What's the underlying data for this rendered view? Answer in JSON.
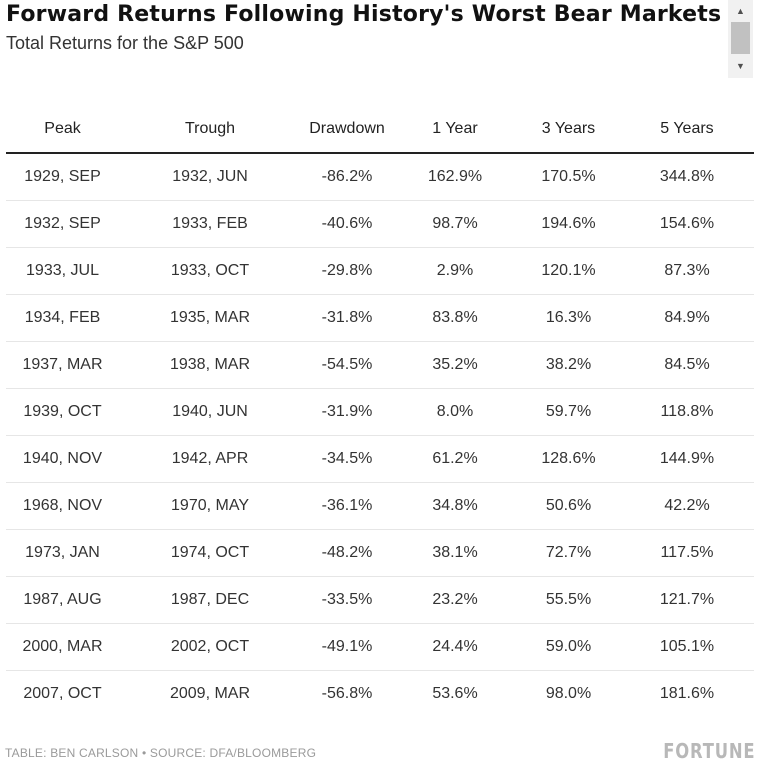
{
  "header": {
    "title": "Forward Returns Following History's Worst Bear Markets",
    "subtitle": "Total Returns for the S&P 500"
  },
  "scrollbar": {
    "up_icon": "▲",
    "down_icon": "▼"
  },
  "table": {
    "columns": [
      "Peak",
      "Trough",
      "Drawdown",
      "1 Year",
      "3 Years",
      "5 Years"
    ],
    "rows": [
      [
        "1929, SEP",
        "1932, JUN",
        "-86.2%",
        "162.9%",
        "170.5%",
        "344.8%"
      ],
      [
        "1932, SEP",
        "1933, FEB",
        "-40.6%",
        "98.7%",
        "194.6%",
        "154.6%"
      ],
      [
        "1933, JUL",
        "1933, OCT",
        "-29.8%",
        "2.9%",
        "120.1%",
        "87.3%"
      ],
      [
        "1934, FEB",
        "1935, MAR",
        "-31.8%",
        "83.8%",
        "16.3%",
        "84.9%"
      ],
      [
        "1937, MAR",
        "1938, MAR",
        "-54.5%",
        "35.2%",
        "38.2%",
        "84.5%"
      ],
      [
        "1939, OCT",
        "1940, JUN",
        "-31.9%",
        "8.0%",
        "59.7%",
        "118.8%"
      ],
      [
        "1940, NOV",
        "1942, APR",
        "-34.5%",
        "61.2%",
        "128.6%",
        "144.9%"
      ],
      [
        "1968, NOV",
        "1970, MAY",
        "-36.1%",
        "34.8%",
        "50.6%",
        "42.2%"
      ],
      [
        "1973, JAN",
        "1974, OCT",
        "-48.2%",
        "38.1%",
        "72.7%",
        "117.5%"
      ],
      [
        "1987, AUG",
        "1987, DEC",
        "-33.5%",
        "23.2%",
        "55.5%",
        "121.7%"
      ],
      [
        "2000, MAR",
        "2002, OCT",
        "-49.1%",
        "24.4%",
        "59.0%",
        "105.1%"
      ],
      [
        "2007, OCT",
        "2009, MAR",
        "-56.8%",
        "53.6%",
        "98.0%",
        "181.6%"
      ]
    ]
  },
  "footer": {
    "source": "TABLE: BEN CARLSON • SOURCE: DFA/BLOOMBERG",
    "logo": "FORTUNE"
  }
}
